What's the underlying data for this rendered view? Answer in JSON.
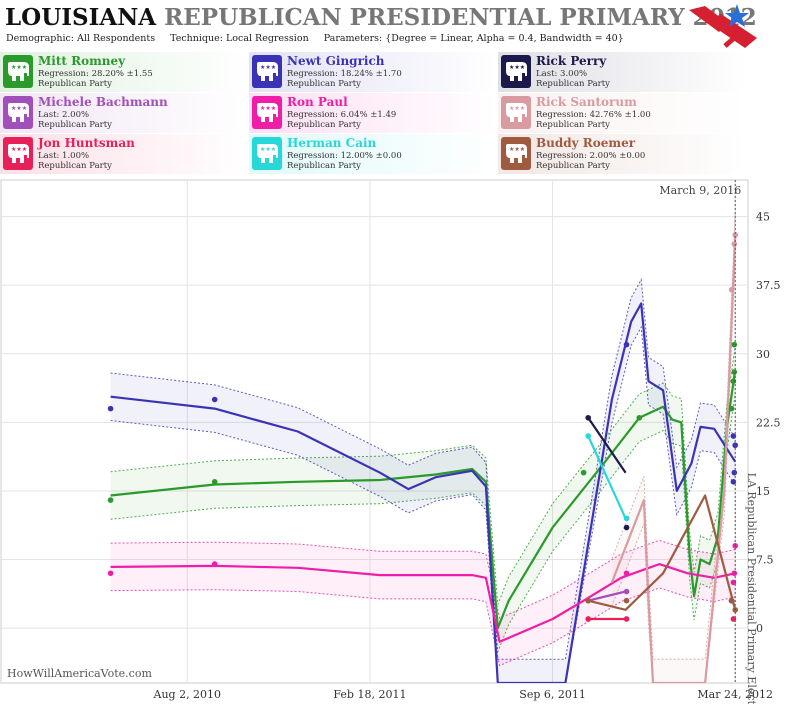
{
  "header": {
    "title_state": "LOUISIANA",
    "title_rest": "REPUBLICAN PRESIDENTIAL PRIMARY 2012",
    "demographic": "Demographic: All Respondents",
    "technique": "Technique: Local Regression",
    "parameters": "Parameters: {Degree = Linear, Alpha = 0.4, Bandwidth = 40}"
  },
  "legend": [
    {
      "name": "Mitt Romney",
      "stat": "Regression: 28.20% ±1.55",
      "party": "Republican Party",
      "color": "#2a9a2a"
    },
    {
      "name": "Newt Gingrich",
      "stat": "Regression: 18.24% ±1.70",
      "party": "Republican Party",
      "color": "#3b33b5"
    },
    {
      "name": "Rick Perry",
      "stat": "Last: 3.00%",
      "party": "Republican Party",
      "color": "#1c1a4a"
    },
    {
      "name": "Michele Bachmann",
      "stat": "Last: 2.00%",
      "party": "Republican Party",
      "color": "#a050b8"
    },
    {
      "name": "Ron Paul",
      "stat": "Regression: 6.04% ±1.49",
      "party": "Republican Party",
      "color": "#ee1ea8"
    },
    {
      "name": "Rick Santorum",
      "stat": "Regression: 42.76% ±1.00",
      "party": "Republican Party",
      "color": "#d99aa0"
    },
    {
      "name": "Jon Huntsman",
      "stat": "Last: 1.00%",
      "party": "Republican Party",
      "color": "#e8205a"
    },
    {
      "name": "Herman Cain",
      "stat": "Regression: 12.00% ±0.00",
      "party": "Republican Party",
      "color": "#28d8d8"
    },
    {
      "name": "Buddy Roemer",
      "stat": "Regression: 2.00% ±0.00",
      "party": "Republican Party",
      "color": "#a05a40"
    }
  ],
  "footer": "HowWillAmericaVote.com",
  "chart_data": {
    "type": "line",
    "x_ticks": [
      "Aug 2, 2010",
      "Feb 18, 2011",
      "Sep 6, 2011",
      "Mar 24, 2012"
    ],
    "y_ticks": [
      0,
      7.5,
      15,
      22.5,
      30,
      37.5,
      45
    ],
    "ylim": [
      -6,
      49
    ],
    "xlim": [
      "2010-01-10",
      "2012-04-07"
    ],
    "grid": true,
    "current_date_label": "March 9, 2016",
    "election_label": "LA Republican Presidential Primary Election",
    "election_date": "2012-03-24",
    "series": [
      {
        "name": "Mitt Romney",
        "color": "#2a9a2a",
        "trend": [
          [
            "2010-05-10",
            14.5
          ],
          [
            "2010-09-01",
            15.7
          ],
          [
            "2010-12-01",
            16.0
          ],
          [
            "2011-03-01",
            16.2
          ],
          [
            "2011-05-01",
            16.8
          ],
          [
            "2011-06-10",
            17.4
          ],
          [
            "2011-06-25",
            16.0
          ],
          [
            "2011-07-08",
            0.0
          ],
          [
            "2011-07-20",
            3.0
          ],
          [
            "2011-09-06",
            11.0
          ],
          [
            "2011-11-01",
            18.0
          ],
          [
            "2011-12-10",
            23.0
          ],
          [
            "2012-01-05",
            24.2
          ],
          [
            "2012-01-15",
            22.8
          ],
          [
            "2012-01-25",
            22.5
          ],
          [
            "2012-02-03",
            8.0
          ],
          [
            "2012-02-08",
            3.5
          ],
          [
            "2012-02-15",
            7.5
          ],
          [
            "2012-02-25",
            7.0
          ],
          [
            "2012-03-05",
            10.0
          ],
          [
            "2012-03-15",
            22.0
          ],
          [
            "2012-03-24",
            28.2
          ]
        ],
        "points": [
          [
            "2010-05-10",
            14
          ],
          [
            "2010-09-01",
            16
          ],
          [
            "2011-10-10",
            17
          ],
          [
            "2011-12-10",
            23
          ],
          [
            "2012-03-20",
            24
          ],
          [
            "2012-03-22",
            27
          ],
          [
            "2012-03-23",
            28
          ],
          [
            "2012-03-23",
            31
          ]
        ]
      },
      {
        "name": "Newt Gingrich",
        "color": "#3b33b5",
        "trend": [
          [
            "2010-05-10",
            25.3
          ],
          [
            "2010-09-01",
            24.0
          ],
          [
            "2010-12-01",
            21.5
          ],
          [
            "2011-03-01",
            17.0
          ],
          [
            "2011-04-01",
            15.2
          ],
          [
            "2011-05-01",
            16.5
          ],
          [
            "2011-06-10",
            17.2
          ],
          [
            "2011-06-25",
            15.5
          ],
          [
            "2011-07-08",
            -6.0
          ],
          [
            "2011-09-20",
            -6.0
          ],
          [
            "2011-11-10",
            25.0
          ],
          [
            "2011-12-01",
            33.5
          ],
          [
            "2011-12-12",
            35.5
          ],
          [
            "2011-12-20",
            27.0
          ],
          [
            "2012-01-05",
            26.0
          ],
          [
            "2012-01-20",
            15.0
          ],
          [
            "2012-02-05",
            18.0
          ],
          [
            "2012-02-15",
            22.0
          ],
          [
            "2012-03-01",
            21.8
          ],
          [
            "2012-03-24",
            18.2
          ]
        ],
        "points": [
          [
            "2010-05-10",
            24
          ],
          [
            "2010-09-01",
            25
          ],
          [
            "2011-11-26",
            31
          ],
          [
            "2012-03-22",
            21
          ],
          [
            "2012-03-22",
            16
          ],
          [
            "2012-03-24",
            20
          ],
          [
            "2012-03-23",
            17
          ]
        ]
      },
      {
        "name": "Rick Perry",
        "color": "#1c1a4a",
        "trend": [
          [
            "2011-10-15",
            23
          ],
          [
            "2011-11-25",
            17
          ]
        ],
        "points": [
          [
            "2011-10-15",
            23
          ],
          [
            "2011-11-26",
            11
          ],
          [
            "2012-03-20",
            3
          ]
        ]
      },
      {
        "name": "Michele Bachmann",
        "color": "#a050b8",
        "trend": [
          [
            "2011-10-15",
            3
          ],
          [
            "2011-11-25",
            4
          ]
        ],
        "points": [
          [
            "2011-10-15",
            3
          ],
          [
            "2011-11-26",
            4
          ]
        ]
      },
      {
        "name": "Ron Paul",
        "color": "#ee1ea8",
        "trend": [
          [
            "2010-05-10",
            6.7
          ],
          [
            "2010-09-01",
            6.8
          ],
          [
            "2010-12-01",
            6.6
          ],
          [
            "2011-03-01",
            5.8
          ],
          [
            "2011-06-10",
            5.8
          ],
          [
            "2011-06-25",
            5.5
          ],
          [
            "2011-07-10",
            -1.5
          ],
          [
            "2011-09-06",
            1.0
          ],
          [
            "2011-10-10",
            3.0
          ],
          [
            "2011-11-20",
            5.5
          ],
          [
            "2012-01-01",
            7.0
          ],
          [
            "2012-02-01",
            6.0
          ],
          [
            "2012-03-01",
            5.5
          ],
          [
            "2012-03-24",
            6.0
          ]
        ],
        "points": [
          [
            "2010-05-10",
            6
          ],
          [
            "2010-09-01",
            7
          ],
          [
            "2011-11-26",
            6
          ],
          [
            "2012-03-22",
            5
          ],
          [
            "2012-03-23",
            6
          ],
          [
            "2012-03-24",
            9
          ]
        ]
      },
      {
        "name": "Rick Santorum",
        "color": "#d99aa0",
        "trend": [
          [
            "2011-11-10",
            5
          ],
          [
            "2011-12-15",
            14
          ],
          [
            "2011-12-20",
            3
          ],
          [
            "2011-12-25",
            -6
          ],
          [
            "2012-01-25",
            -6
          ],
          [
            "2012-02-05",
            -6
          ],
          [
            "2012-02-20",
            -6
          ],
          [
            "2012-03-12",
            15
          ],
          [
            "2012-03-24",
            42.8
          ]
        ],
        "points": [
          [
            "2012-03-20",
            37
          ],
          [
            "2012-03-23",
            42
          ],
          [
            "2012-03-24",
            43
          ],
          [
            "2011-10-15",
            3
          ]
        ]
      },
      {
        "name": "Jon Huntsman",
        "color": "#e8205a",
        "trend": [
          [
            "2011-10-15",
            1
          ],
          [
            "2011-11-25",
            1
          ]
        ],
        "points": [
          [
            "2011-10-15",
            1
          ],
          [
            "2011-11-26",
            1
          ],
          [
            "2012-03-22",
            1
          ]
        ]
      },
      {
        "name": "Herman Cain",
        "color": "#28d8d8",
        "trend": [
          [
            "2011-10-15",
            21
          ],
          [
            "2011-11-25",
            12
          ]
        ],
        "points": [
          [
            "2011-10-15",
            21
          ],
          [
            "2011-11-26",
            12
          ]
        ]
      },
      {
        "name": "Buddy Roemer",
        "color": "#a05a40",
        "trend": [
          [
            "2011-10-15",
            3.0
          ],
          [
            "2011-11-25",
            2.0
          ],
          [
            "2012-01-05",
            6.0
          ],
          [
            "2012-02-20",
            14.5
          ],
          [
            "2012-03-24",
            2.0
          ]
        ],
        "points": [
          [
            "2011-10-15",
            3
          ],
          [
            "2011-11-26",
            3
          ],
          [
            "2012-03-20",
            3
          ],
          [
            "2012-03-24",
            2
          ]
        ]
      }
    ]
  }
}
